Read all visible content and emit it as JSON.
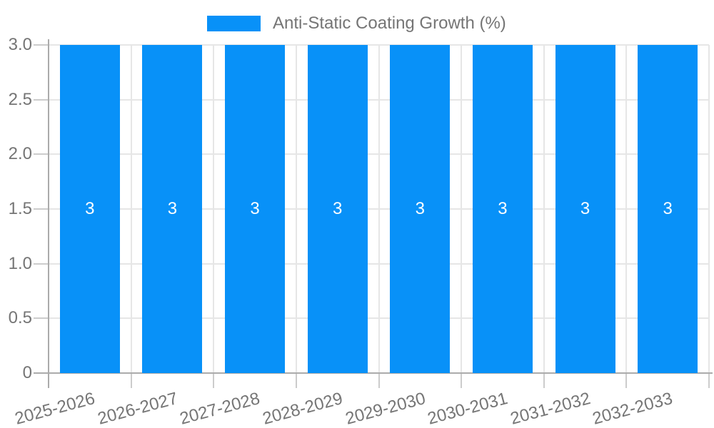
{
  "chart_data": {
    "type": "bar",
    "legend_label": "Anti-Static Coating Growth (%)",
    "legend_position": "top-center",
    "categories": [
      "2025-2026",
      "2026-2027",
      "2027-2028",
      "2028-2029",
      "2029-2030",
      "2030-2031",
      "2031-2032",
      "2032-2033"
    ],
    "series": [
      {
        "name": "Anti-Static Coating Growth (%)",
        "values": [
          3,
          3,
          3,
          3,
          3,
          3,
          3,
          3
        ]
      }
    ],
    "bar_value_labels": [
      "3",
      "3",
      "3",
      "3",
      "3",
      "3",
      "3",
      "3"
    ],
    "xlabel": "",
    "ylabel": "",
    "ylim": [
      0,
      3
    ],
    "y_ticks": [
      {
        "value": 0,
        "label": "0"
      },
      {
        "value": 0.5,
        "label": "0.5"
      },
      {
        "value": 1,
        "label": "1.0"
      },
      {
        "value": 1.5,
        "label": "1.5"
      },
      {
        "value": 2,
        "label": "2.0"
      },
      {
        "value": 2.5,
        "label": "2.5"
      },
      {
        "value": 3,
        "label": "3.0"
      }
    ],
    "grid": true,
    "x_label_rotation_deg": -15,
    "colors": {
      "bar": "#0891f8",
      "bar_label": "#ffffff",
      "grid": "#e6e6e6",
      "axis": "#ababab",
      "tick": "#cccccc",
      "tick_text": "#757575",
      "legend_text": "#757575",
      "background": "#ffffff"
    }
  }
}
